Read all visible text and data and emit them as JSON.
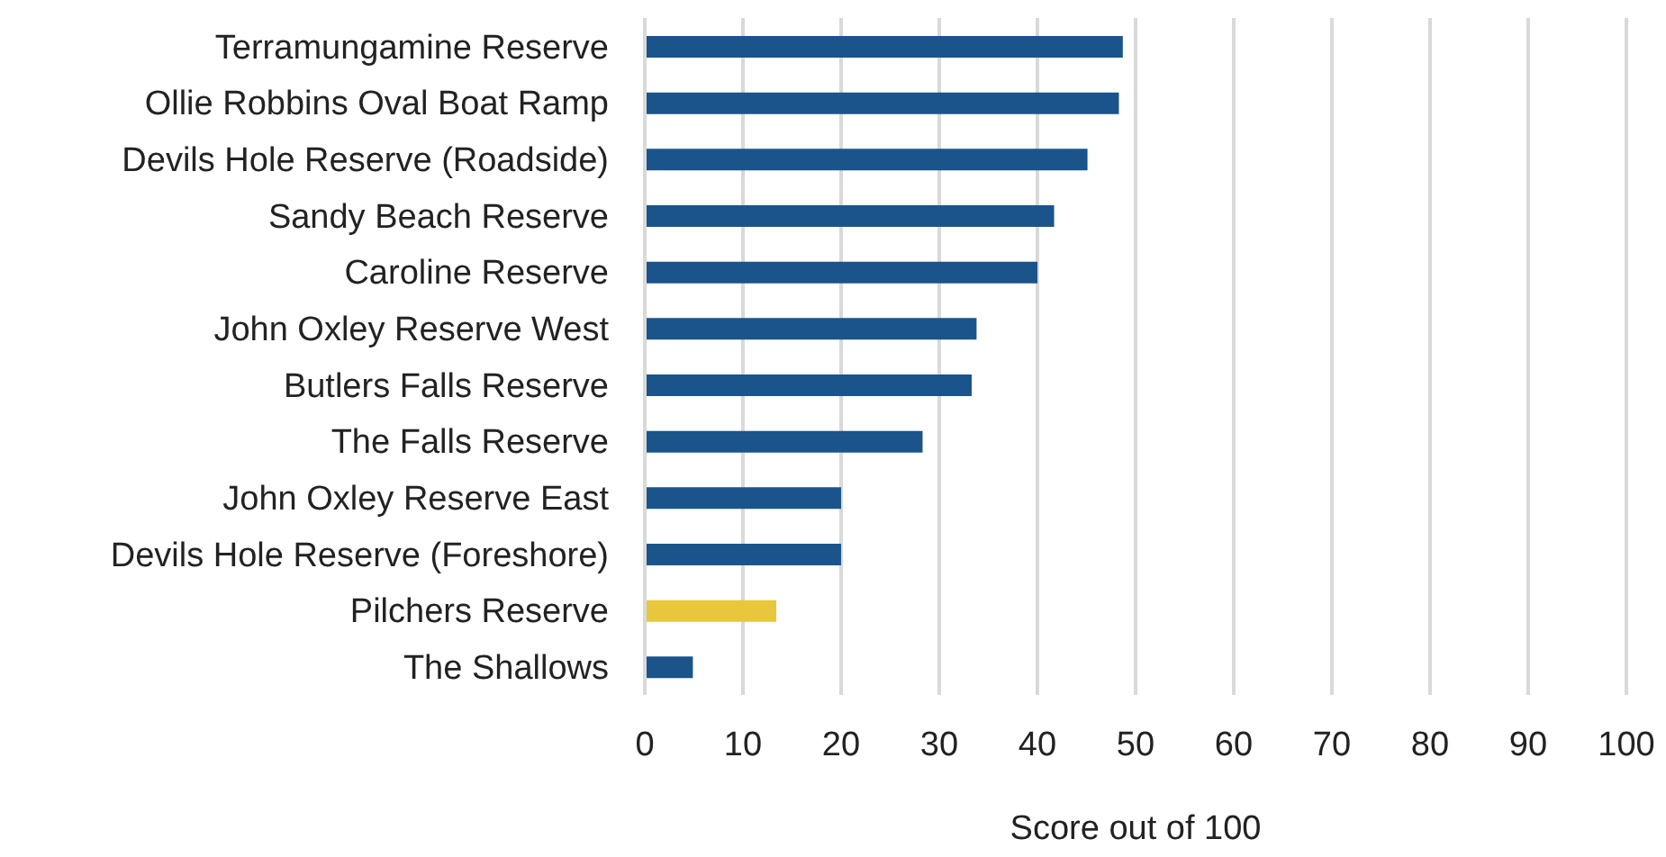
{
  "chart_data": {
    "type": "bar",
    "orientation": "horizontal",
    "xlabel": "Score out of 100",
    "categories": [
      "Terramungamine Reserve",
      "Ollie Robbins Oval Boat Ramp",
      "Devils Hole Reserve (Roadside)",
      "Sandy Beach Reserve ",
      "Caroline Reserve",
      "John Oxley Reserve West ",
      "Butlers Falls Reserve",
      "The Falls Reserve",
      "John Oxley Reserve East",
      "Devils Hole Reserve (Foreshore)",
      "Pilchers Reserve",
      "The Shallows"
    ],
    "values": [
      48.7,
      48.3,
      45.1,
      41.7,
      40,
      33.8,
      33.3,
      28.3,
      20,
      20,
      13.4,
      4.9
    ],
    "colors": [
      "#1a548a",
      "#1a548a",
      "#1a548a",
      "#1a548a",
      "#1a548a",
      "#1a548a",
      "#1a548a",
      "#1a548a",
      "#1a548a",
      "#1a548a",
      "#e9c73d",
      "#1a548a"
    ],
    "xlim": [
      0,
      100
    ],
    "xticks": [
      0,
      10,
      20,
      30,
      40,
      50,
      60,
      70,
      80,
      90,
      100
    ],
    "grid": "x",
    "legend": false
  }
}
